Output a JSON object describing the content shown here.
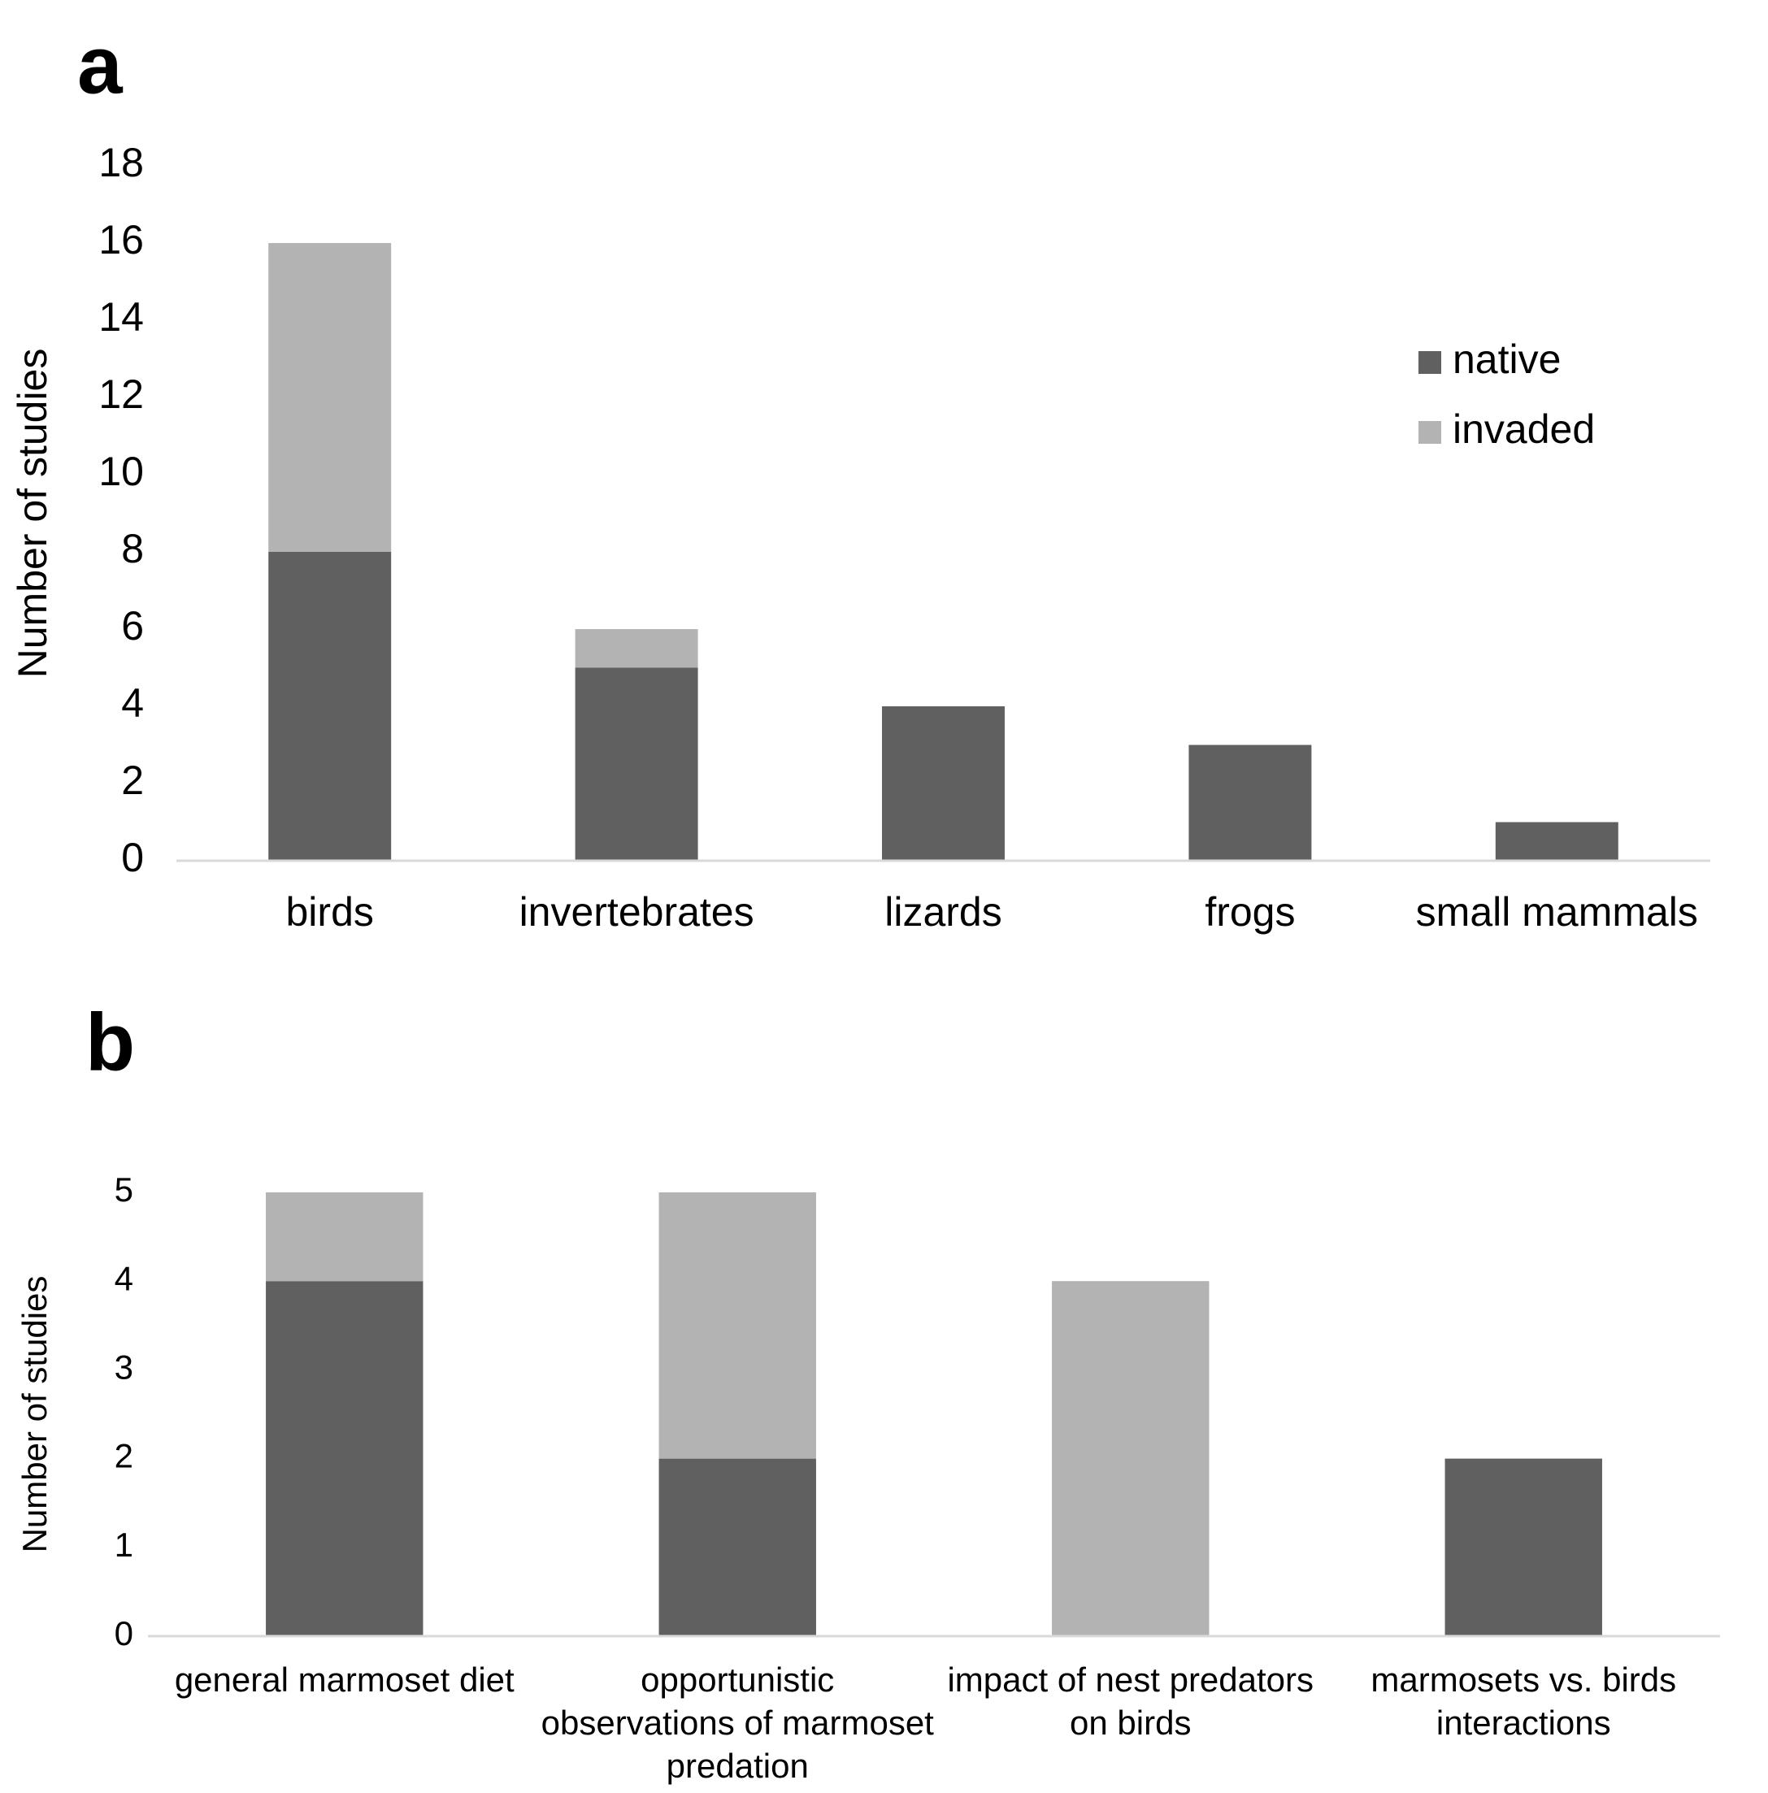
{
  "chart_data": [
    {
      "type": "stacked_bar",
      "panel_label": "a",
      "y_label": "Number of studies",
      "categories": [
        "birds",
        "invertebrates",
        "lizards",
        "frogs",
        "small mammals"
      ],
      "series": [
        {
          "name": "native",
          "color": "#606060",
          "values": [
            8,
            5,
            4,
            3,
            1
          ]
        },
        {
          "name": "invaded",
          "color": "#b3b3b3",
          "values": [
            8,
            1,
            0,
            0,
            0
          ]
        }
      ],
      "ylim": [
        0,
        18
      ],
      "yticks": [
        0,
        2,
        4,
        6,
        8,
        10,
        12,
        14,
        16,
        18
      ],
      "grid": false,
      "legend": "upper right"
    },
    {
      "type": "stacked_bar",
      "panel_label": "b",
      "y_label": "Number of studies",
      "categories": [
        "general marmoset diet",
        "opportunistic observations of marmoset predation",
        "impact of nest predators on birds",
        "marmosets vs. birds interactions"
      ],
      "series": [
        {
          "name": "native",
          "color": "#606060",
          "values": [
            4,
            2,
            0,
            2
          ]
        },
        {
          "name": "invaded",
          "color": "#b3b3b3",
          "values": [
            1,
            3,
            4,
            0
          ]
        }
      ],
      "ylim": [
        0,
        5
      ],
      "yticks": [
        0,
        1,
        2,
        3,
        4,
        5
      ],
      "grid": false
    }
  ]
}
